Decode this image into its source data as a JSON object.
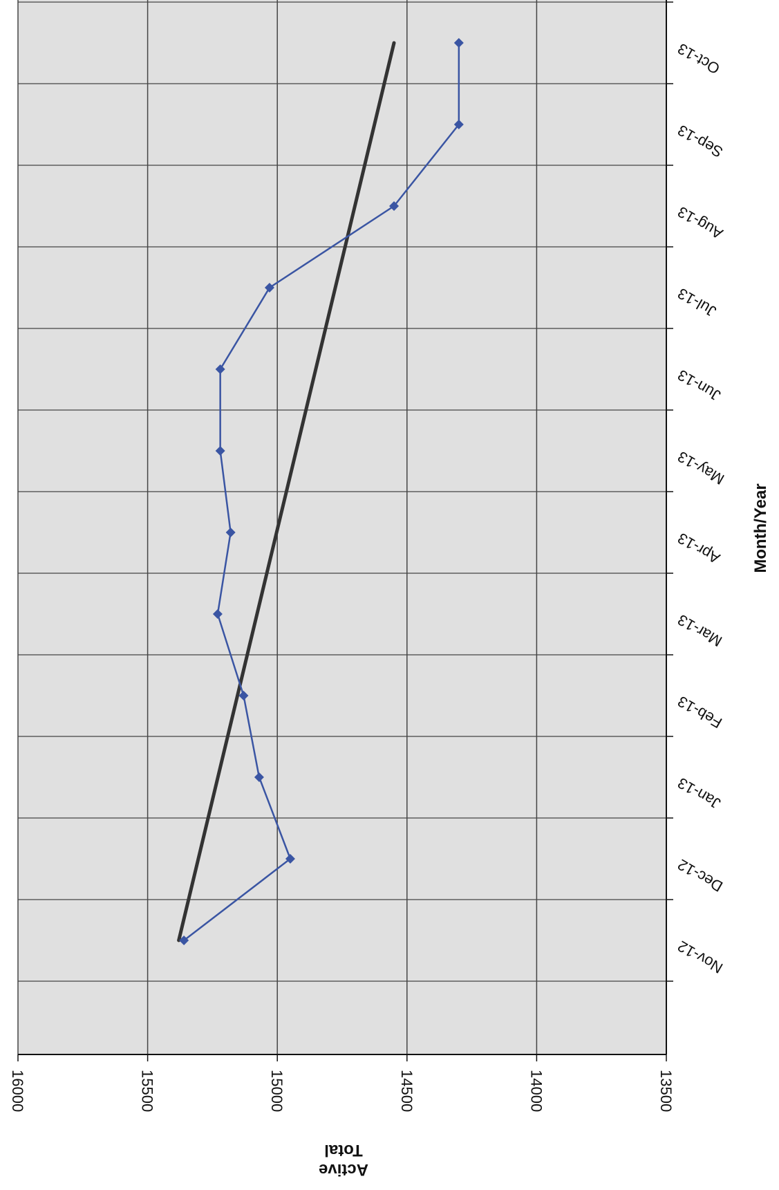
{
  "chart_data": {
    "type": "line",
    "xlabel": "Month/Year",
    "ylabel_line1": "Active",
    "ylabel_line2": "Total",
    "categories": [
      "Nov-12",
      "Dec-12",
      "Jan-13",
      "Feb-13",
      "Mar-13",
      "Apr-13",
      "May-13",
      "Jun-13",
      "Jul-13",
      "Aug-13",
      "Sep-13",
      "Oct-13"
    ],
    "ylim": [
      13500,
      16000
    ],
    "yticks": [
      16000,
      15500,
      15000,
      14500,
      14000,
      13500
    ],
    "series": [
      {
        "values": [
          15360,
          14950,
          15070,
          15130,
          15230,
          15180,
          15220,
          15220,
          15030,
          14550,
          14300,
          14300
        ],
        "color": "#3a55a3"
      }
    ],
    "trendline": {
      "start": 15380,
      "end": 14550,
      "color": "#333333"
    },
    "grid": true,
    "plot_background": "#e0e0e0",
    "gridline_color": "#444444"
  }
}
